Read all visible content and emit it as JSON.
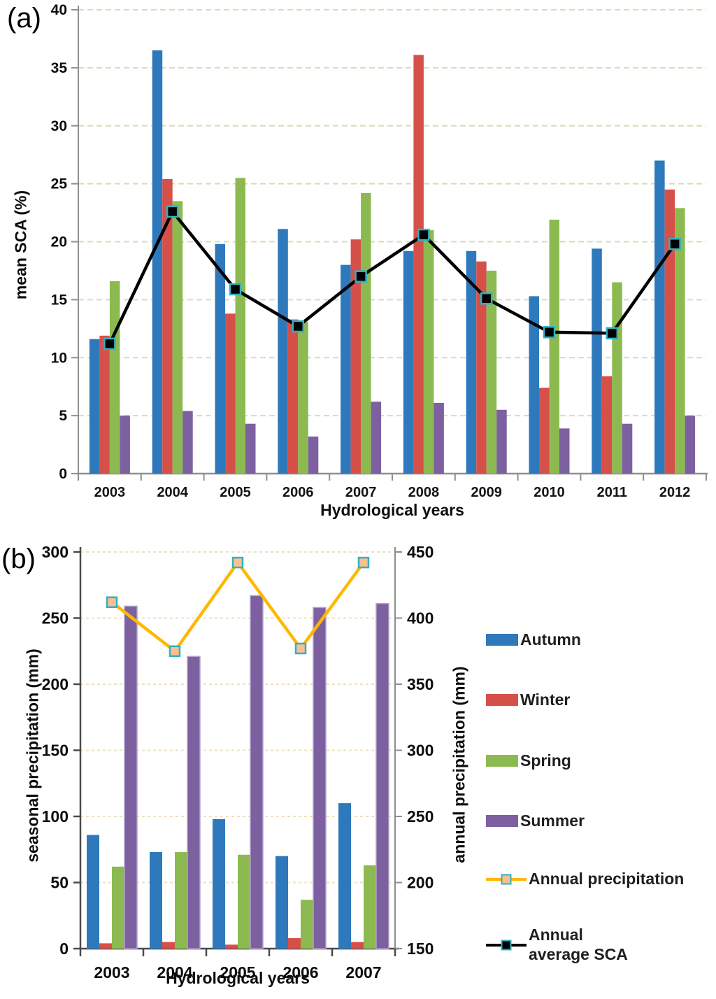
{
  "figure": {
    "panel_a_tag": "(a)",
    "panel_b_tag": "(b)"
  },
  "colors": {
    "autumn": "#2e79bb",
    "winter": "#d6504a",
    "spring": "#8cba50",
    "summer": "#7d60a0",
    "summer_border": "#b1a3ca",
    "sca_line": "#000000",
    "sca_marker_fill": "#000000",
    "marker_edge_teal": "#31b0c5",
    "precip_line": "#ffb800",
    "precip_marker_fill": "#fac090",
    "grid_a": "#ded9b8",
    "grid_b": "#eee0c0",
    "axis_a": "#8f8f8f",
    "axis_b_dark": "#4a4a4a",
    "axis_b_right": "#8f8f8f"
  },
  "chart_data": [
    {
      "id": "a",
      "type": "bar",
      "title": "",
      "xlabel": "Hydrological years",
      "ylabel": "mean SCA (%)",
      "ylim": [
        0,
        40
      ],
      "yticks": [
        0,
        5,
        10,
        15,
        20,
        25,
        30,
        35,
        40
      ],
      "grid": "horizontal-dashed",
      "legend_position": "none (shared legend right of panel b)",
      "categories": [
        "2003",
        "2004",
        "2005",
        "2006",
        "2007",
        "2008",
        "2009",
        "2010",
        "2011",
        "2012"
      ],
      "series": [
        {
          "name": "Autumn",
          "type": "bar",
          "color": "#2e79bb",
          "values": [
            11.6,
            36.5,
            19.8,
            21.1,
            18.0,
            19.2,
            19.2,
            15.3,
            19.4,
            27.0
          ]
        },
        {
          "name": "Winter",
          "type": "bar",
          "color": "#d6504a",
          "values": [
            11.9,
            25.4,
            13.8,
            13.3,
            20.2,
            36.1,
            18.3,
            7.4,
            8.4,
            24.5
          ]
        },
        {
          "name": "Spring",
          "type": "bar",
          "color": "#8cba50",
          "values": [
            16.6,
            23.5,
            25.5,
            13.1,
            24.2,
            21.0,
            17.5,
            21.9,
            16.5,
            22.9
          ]
        },
        {
          "name": "Summer",
          "type": "bar",
          "color": "#7d60a0",
          "values": [
            5.0,
            5.4,
            4.3,
            3.2,
            6.2,
            6.1,
            5.5,
            3.9,
            4.3,
            5.0
          ]
        },
        {
          "name": "Annual average SCA",
          "type": "line",
          "color": "#000000",
          "marker_fill": "#000000",
          "marker_edge": "#31b0c5",
          "values": [
            11.2,
            22.6,
            15.9,
            12.7,
            17.0,
            20.6,
            15.1,
            12.2,
            12.1,
            19.8
          ]
        }
      ]
    },
    {
      "id": "b",
      "type": "bar",
      "title": "",
      "xlabel": "Hydrological years",
      "ylabel_left": "seasonal precipitation (mm)",
      "ylabel_right": "annual precipitation  (mm)",
      "ylim_left": [
        0,
        300
      ],
      "yticks_left": [
        0,
        50,
        100,
        150,
        200,
        250,
        300
      ],
      "ylim_right": [
        150,
        450
      ],
      "yticks_right": [
        150,
        200,
        250,
        300,
        350,
        400,
        450
      ],
      "grid": "horizontal-dashed",
      "categories": [
        "2003",
        "2004",
        "2005",
        "2006",
        "2007"
      ],
      "series": [
        {
          "name": "Autumn",
          "type": "bar",
          "axis": "left",
          "color": "#2e79bb",
          "values": [
            86,
            73,
            98,
            70,
            110
          ]
        },
        {
          "name": "Winter",
          "type": "bar",
          "axis": "left",
          "color": "#d6504a",
          "values": [
            4,
            5,
            3,
            8,
            5
          ]
        },
        {
          "name": "Spring",
          "type": "bar",
          "axis": "left",
          "color": "#8cba50",
          "values": [
            62,
            73,
            71,
            37,
            63
          ]
        },
        {
          "name": "Summer",
          "type": "bar",
          "axis": "left",
          "color": "#7d60a0",
          "border": "#b1a3ca",
          "values": [
            259,
            221,
            267,
            258,
            261
          ]
        },
        {
          "name": "Annual precipitation",
          "type": "line",
          "axis": "right",
          "color": "#ffb800",
          "marker_fill": "#fac090",
          "marker_edge": "#31b0c5",
          "values": [
            412,
            375,
            442,
            377,
            442
          ]
        }
      ]
    }
  ],
  "legend": {
    "items": [
      {
        "label": "Autumn",
        "swatch": "bar",
        "color": "#2e79bb"
      },
      {
        "label": "Winter",
        "swatch": "bar",
        "color": "#d6504a"
      },
      {
        "label": "Spring",
        "swatch": "bar",
        "color": "#8cba50"
      },
      {
        "label": "Summer",
        "swatch": "bar",
        "color": "#7d60a0"
      },
      {
        "label": "Annual precipitation",
        "swatch": "line",
        "color": "#ffb800",
        "marker_fill": "#fac090",
        "marker_edge": "#31b0c5"
      },
      {
        "label": "Annual average SCA",
        "swatch": "line",
        "color": "#000000",
        "marker_fill": "#000000",
        "marker_edge": "#31b0c5",
        "wrap": true
      }
    ]
  }
}
